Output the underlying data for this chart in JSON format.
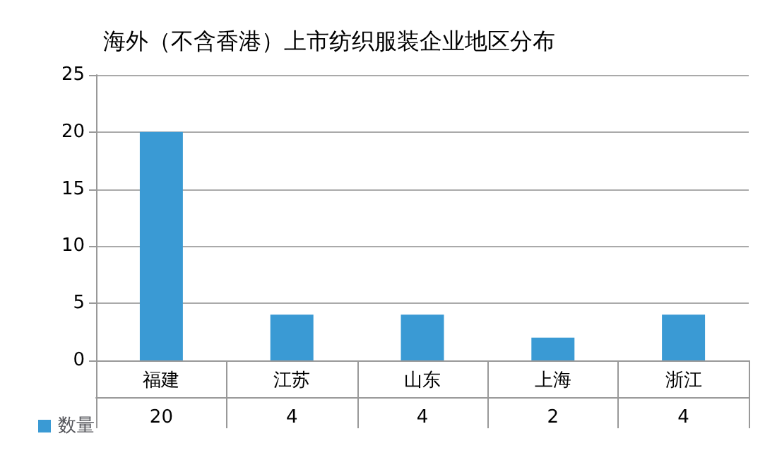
{
  "chart_data": {
    "type": "bar",
    "title": "海外（不含香港）上市纺织服装企业地区分布",
    "categories": [
      "福建",
      "江苏",
      "山东",
      "上海",
      "浙江"
    ],
    "series": [
      {
        "name": "数量",
        "color": "#3a9ad4",
        "values": [
          20,
          4,
          4,
          2,
          4
        ]
      }
    ],
    "ylim": [
      0,
      25
    ],
    "yticks": [
      0,
      5,
      10,
      15,
      20,
      25
    ],
    "grid": "y",
    "legend": "bottom",
    "data_labels": true
  }
}
